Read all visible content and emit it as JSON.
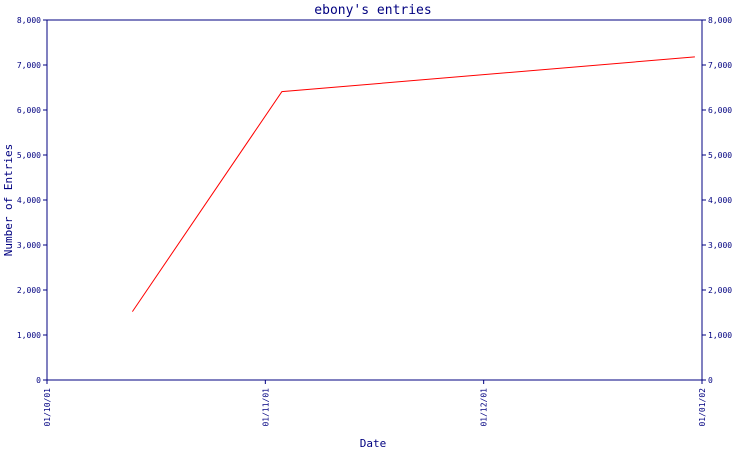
{
  "chart_data": {
    "type": "line",
    "title": "ebony's entries",
    "xlabel": "Date",
    "ylabel": "Number of Entries",
    "x_ticks": [
      "01/10/01",
      "01/11/01",
      "01/12/01",
      "01/01/02"
    ],
    "y_ticks": [
      "0",
      "1,000",
      "2,000",
      "3,000",
      "4,000",
      "5,000",
      "6,000",
      "7,000",
      "8,000"
    ],
    "ylim": [
      0,
      8000
    ],
    "xlim": [
      "2001-10-01",
      "2002-01-01"
    ],
    "grid": false,
    "series": [
      {
        "color": "#ff0000",
        "points": [
          {
            "x": "2001-10-13",
            "y": 1520
          },
          {
            "x": "2001-11-03",
            "y": 6410
          },
          {
            "x": "2001-12-31",
            "y": 7180
          }
        ]
      }
    ]
  }
}
